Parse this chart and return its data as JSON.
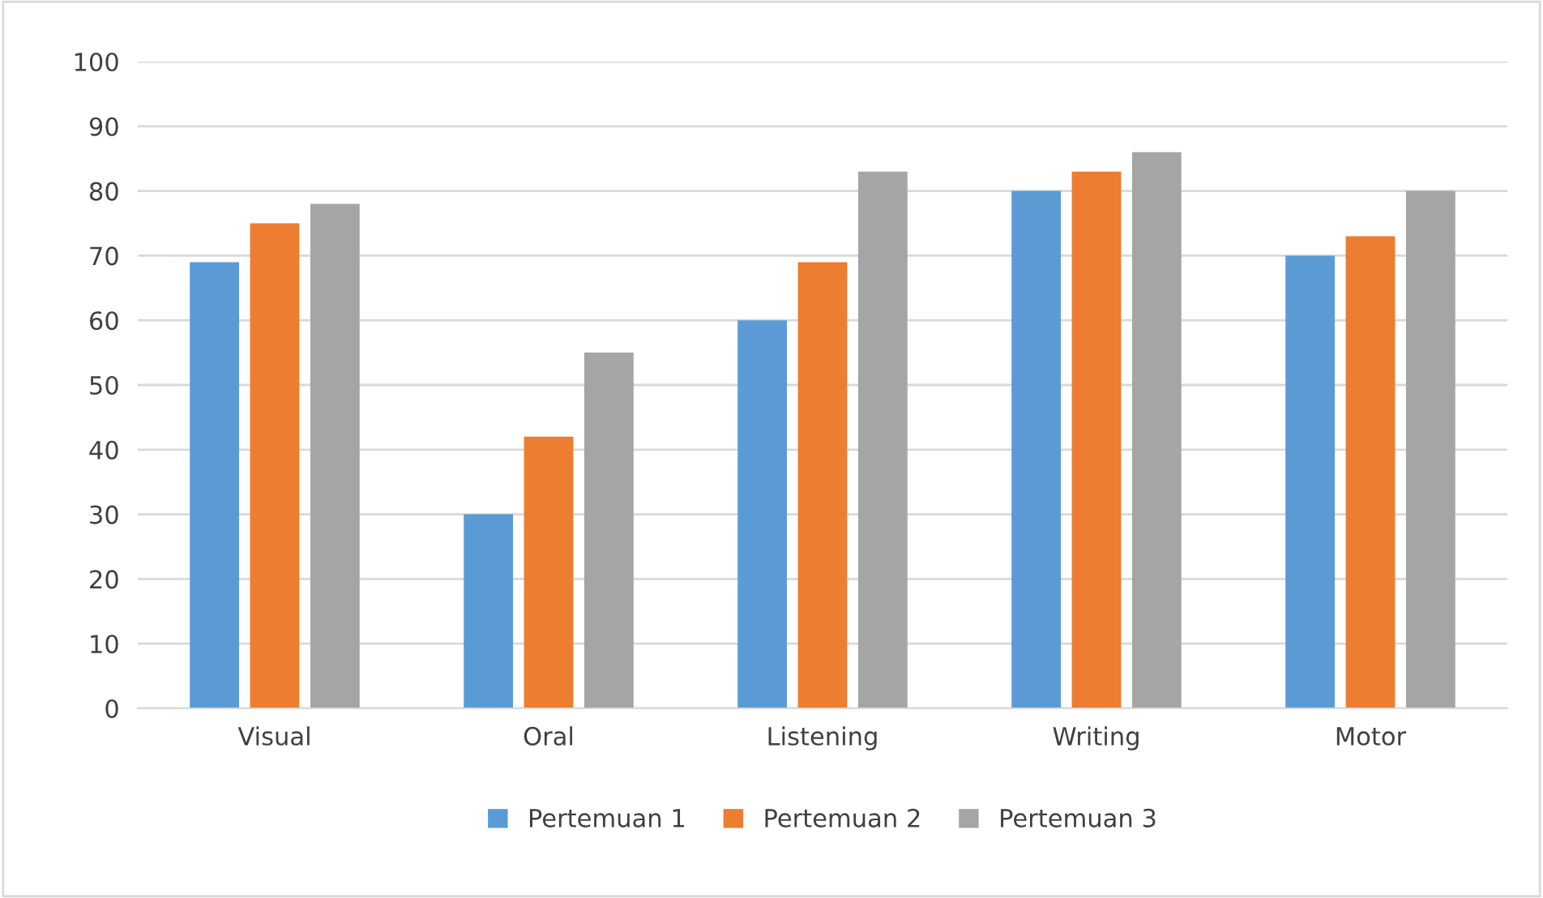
{
  "chart_data": {
    "type": "bar",
    "categories": [
      "Visual",
      "Oral",
      "Listening",
      "Writing",
      "Motor"
    ],
    "series": [
      {
        "name": "Pertemuan 1",
        "color": "#5b9bd5",
        "values": [
          69,
          30,
          60,
          80,
          70
        ]
      },
      {
        "name": "Pertemuan 2",
        "color": "#ed7d31",
        "values": [
          75,
          42,
          69,
          83,
          73
        ]
      },
      {
        "name": "Pertemuan 3",
        "color": "#a5a5a5",
        "values": [
          78,
          55,
          83,
          86,
          80
        ]
      }
    ],
    "ylim": [
      0,
      100
    ],
    "yticks": [
      0,
      10,
      20,
      30,
      40,
      50,
      60,
      70,
      80,
      90,
      100
    ],
    "grid": "y",
    "legend": "bottom"
  }
}
